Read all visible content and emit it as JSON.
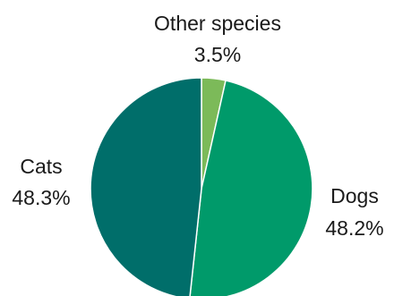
{
  "chart_data": {
    "type": "pie",
    "title": "",
    "start_angle_deg": 0,
    "direction": "clockwise",
    "slices": [
      {
        "label": "Other species",
        "value": 3.5,
        "value_label": "3.5%",
        "color": "#7cba59"
      },
      {
        "label": "Dogs",
        "value": 48.2,
        "value_label": "48.2%",
        "color": "#009a6a"
      },
      {
        "label": "Cats",
        "value": 48.3,
        "value_label": "48.3%",
        "color": "#006e6a"
      }
    ]
  }
}
